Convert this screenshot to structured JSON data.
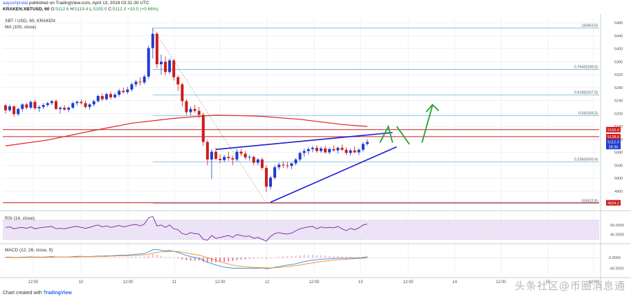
{
  "header": {
    "author": "aayushjindal",
    "published_text": "published on TradingView.com, April 13, 2019 03:31:30 UTC",
    "symbol_line": "KRAKEN:XBTUSD, 60",
    "ohlc_o": "5112.6",
    "ohlc_h": "5119.4",
    "ohlc_l": "5105.0",
    "ohlc_c": "5112.3",
    "change": "+33.5 (+0.66%)"
  },
  "legend": {
    "title": "XBT / USD, 60, KRAKEN",
    "ma": "MA (100, close)",
    "rsi": "RSI (14, close)",
    "macd": "MACD (12, 26, close, 9)"
  },
  "footer": {
    "prefix": "Chart created with",
    "brand": "TradingView"
  },
  "watermark": "头条社区@币圈消息通",
  "colors": {
    "up": "#1f3bd0",
    "down": "#d01a1a",
    "ma": "#e0201c",
    "trend": "#1a1ad0",
    "fib": "#6fb0d8",
    "arrow": "#1fa52a",
    "rsi": "#7b1fa2",
    "macd": "#2e8de0",
    "signal": "#f08a24"
  },
  "chart_data": {
    "type": "candlestick",
    "x_ticks": [
      "12:00",
      "10",
      "12:00",
      "11",
      "12:00",
      "12",
      "12:00",
      "13",
      "12:00",
      "14",
      "12:00",
      "15",
      "12:00"
    ],
    "y_ticks": [
      4960,
      5000,
      5040,
      5080,
      5120,
      5160,
      5200,
      5240,
      5280,
      5320,
      5360,
      5400,
      5440,
      5480
    ],
    "ylim": [
      4915,
      5495
    ],
    "candles": [
      [
        5225,
        5230,
        5200,
        5210
      ],
      [
        5210,
        5228,
        5205,
        5222
      ],
      [
        5222,
        5226,
        5190,
        5198
      ],
      [
        5198,
        5218,
        5192,
        5214
      ],
      [
        5214,
        5232,
        5206,
        5228
      ],
      [
        5228,
        5234,
        5212,
        5218
      ],
      [
        5218,
        5240,
        5214,
        5236
      ],
      [
        5236,
        5242,
        5212,
        5216
      ],
      [
        5216,
        5225,
        5205,
        5220
      ],
      [
        5220,
        5232,
        5214,
        5226
      ],
      [
        5226,
        5236,
        5220,
        5232
      ],
      [
        5232,
        5242,
        5226,
        5238
      ],
      [
        5238,
        5244,
        5210,
        5214
      ],
      [
        5214,
        5222,
        5200,
        5218
      ],
      [
        5218,
        5226,
        5208,
        5212
      ],
      [
        5212,
        5222,
        5204,
        5218
      ],
      [
        5218,
        5236,
        5214,
        5232
      ],
      [
        5232,
        5240,
        5224,
        5236
      ],
      [
        5236,
        5244,
        5228,
        5232
      ],
      [
        5232,
        5240,
        5216,
        5220
      ],
      [
        5220,
        5232,
        5212,
        5228
      ],
      [
        5228,
        5242,
        5222,
        5238
      ],
      [
        5238,
        5258,
        5234,
        5254
      ],
      [
        5254,
        5262,
        5238,
        5244
      ],
      [
        5244,
        5264,
        5240,
        5260
      ],
      [
        5260,
        5268,
        5244,
        5250
      ],
      [
        5250,
        5264,
        5246,
        5258
      ],
      [
        5258,
        5276,
        5252,
        5270
      ],
      [
        5270,
        5280,
        5262,
        5266
      ],
      [
        5266,
        5282,
        5260,
        5274
      ],
      [
        5274,
        5296,
        5268,
        5290
      ],
      [
        5290,
        5304,
        5282,
        5298
      ],
      [
        5298,
        5312,
        5286,
        5296
      ],
      [
        5296,
        5320,
        5290,
        5314
      ],
      [
        5314,
        5410,
        5306,
        5402
      ],
      [
        5402,
        5464,
        5370,
        5446
      ],
      [
        5446,
        5452,
        5340,
        5352
      ],
      [
        5352,
        5382,
        5320,
        5360
      ],
      [
        5360,
        5376,
        5318,
        5328
      ],
      [
        5328,
        5370,
        5322,
        5364
      ],
      [
        5364,
        5368,
        5302,
        5312
      ],
      [
        5312,
        5318,
        5270,
        5290
      ],
      [
        5290,
        5296,
        5222,
        5238
      ],
      [
        5238,
        5244,
        5196,
        5204
      ],
      [
        5204,
        5222,
        5194,
        5214
      ],
      [
        5214,
        5226,
        5202,
        5208
      ],
      [
        5208,
        5220,
        5186,
        5196
      ],
      [
        5196,
        5202,
        5100,
        5112
      ],
      [
        5112,
        5118,
        5040,
        5058
      ],
      [
        5058,
        5090,
        4998,
        5082
      ],
      [
        5082,
        5094,
        5056,
        5060
      ],
      [
        5060,
        5074,
        5046,
        5056
      ],
      [
        5056,
        5072,
        5050,
        5066
      ],
      [
        5066,
        5082,
        5054,
        5062
      ],
      [
        5062,
        5070,
        5040,
        5058
      ],
      [
        5058,
        5090,
        5052,
        5082
      ],
      [
        5082,
        5090,
        5068,
        5076
      ],
      [
        5076,
        5084,
        5058,
        5064
      ],
      [
        5064,
        5072,
        5054,
        5066
      ],
      [
        5066,
        5070,
        5040,
        5048
      ],
      [
        5048,
        5062,
        5040,
        5058
      ],
      [
        5058,
        5064,
        5026,
        5032
      ],
      [
        5032,
        5040,
        4958,
        4974
      ],
      [
        4974,
        5008,
        4966,
        5002
      ],
      [
        5002,
        5040,
        4996,
        5034
      ],
      [
        5034,
        5048,
        5026,
        5042
      ],
      [
        5042,
        5052,
        5032,
        5040
      ],
      [
        5040,
        5050,
        5030,
        5038
      ],
      [
        5038,
        5048,
        5028,
        5046
      ],
      [
        5046,
        5062,
        5040,
        5058
      ],
      [
        5058,
        5082,
        5052,
        5078
      ],
      [
        5078,
        5092,
        5066,
        5084
      ],
      [
        5084,
        5096,
        5074,
        5090
      ],
      [
        5090,
        5100,
        5080,
        5094
      ],
      [
        5094,
        5102,
        5078,
        5084
      ],
      [
        5084,
        5098,
        5078,
        5092
      ],
      [
        5092,
        5100,
        5076,
        5080
      ],
      [
        5080,
        5096,
        5074,
        5090
      ],
      [
        5090,
        5102,
        5082,
        5086
      ],
      [
        5086,
        5098,
        5076,
        5094
      ],
      [
        5094,
        5104,
        5084,
        5088
      ],
      [
        5088,
        5096,
        5072,
        5078
      ],
      [
        5078,
        5092,
        5070,
        5086
      ],
      [
        5086,
        5098,
        5078,
        5080
      ],
      [
        5080,
        5092,
        5072,
        5088
      ],
      [
        5088,
        5112,
        5082,
        5106
      ],
      [
        5106,
        5120,
        5100,
        5112
      ]
    ],
    "ma100": [
      [
        0,
        5100
      ],
      [
        10,
        5118
      ],
      [
        20,
        5145
      ],
      [
        30,
        5170
      ],
      [
        40,
        5185
      ],
      [
        50,
        5195
      ],
      [
        60,
        5192
      ],
      [
        70,
        5182
      ],
      [
        80,
        5166
      ],
      [
        86,
        5160
      ]
    ],
    "fib_levels": [
      {
        "label": "1(5463.6)",
        "value": 5463.6
      },
      {
        "label": "0.764(5336.0)",
        "value": 5336.0
      },
      {
        "label": "0.618(5257.0)",
        "value": 5257.0
      },
      {
        "label": "0.5(5193.2)",
        "value": 5193.2
      },
      {
        "label": "0.236(5050.4)",
        "value": 5050.4
      },
      {
        "label": "0(4922.8)",
        "value": 4922.8
      }
    ],
    "horizontal_lines": [
      5150.0,
      5128.6,
      4924.2
    ],
    "price_tags": [
      {
        "label": "5150.0",
        "value": 5150.0,
        "color": "#d01a1a"
      },
      {
        "label": "5128.6",
        "value": 5128.6,
        "color": "#d01a1a"
      },
      {
        "label": "5112.3",
        "value": 5112.3,
        "color": "#1f3bd0"
      },
      {
        "label": "28:36",
        "value": 5098,
        "color": "#1f3bd0"
      },
      {
        "label": "4924.2",
        "value": 4924.2,
        "color": "#d01a1a"
      }
    ],
    "rsi": {
      "ylim": [
        25,
        80
      ],
      "ticks": [
        40.0,
        60.0
      ],
      "band": [
        30,
        70
      ],
      "values": [
        55,
        56,
        52,
        54,
        55,
        53,
        56,
        52,
        54,
        55,
        56,
        57,
        52,
        53,
        52,
        54,
        56,
        57,
        55,
        53,
        55,
        58,
        60,
        56,
        58,
        55,
        57,
        59,
        56,
        58,
        60,
        61,
        58,
        62,
        75,
        78,
        58,
        60,
        55,
        60,
        52,
        50,
        42,
        40,
        44,
        42,
        41,
        30,
        28,
        38,
        32,
        34,
        36,
        38,
        34,
        40,
        38,
        36,
        37,
        32,
        34,
        30,
        26,
        36,
        42,
        44,
        42,
        41,
        43,
        48,
        52,
        54,
        56,
        57,
        52,
        56,
        54,
        55,
        54,
        57,
        52,
        48,
        53,
        50,
        54,
        60,
        62
      ]
    },
    "macd": {
      "ylim": [
        -60,
        45
      ],
      "ticks": [
        "0.0000",
        "-40.0000"
      ],
      "tick_values": [
        0,
        -40
      ],
      "macd": [
        2,
        2,
        1,
        1,
        2,
        2,
        3,
        2,
        2,
        2,
        3,
        4,
        3,
        3,
        3,
        3,
        4,
        5,
        5,
        4,
        4,
        5,
        6,
        6,
        7,
        7,
        8,
        9,
        9,
        10,
        11,
        13,
        14,
        16,
        22,
        30,
        31,
        28,
        26,
        27,
        24,
        20,
        14,
        8,
        4,
        1,
        -2,
        -10,
        -18,
        -22,
        -28,
        -32,
        -36,
        -38,
        -40,
        -40,
        -40,
        -41,
        -40,
        -40,
        -40,
        -39,
        -42,
        -40,
        -37,
        -34,
        -31,
        -28,
        -26,
        -23,
        -19,
        -15,
        -12,
        -9,
        -8,
        -6,
        -5,
        -4,
        -3,
        -2,
        -2,
        -2,
        -1,
        -2,
        -1,
        1,
        3
      ],
      "signal": [
        1,
        1,
        1,
        1,
        1,
        1,
        2,
        2,
        2,
        2,
        2,
        2,
        3,
        3,
        3,
        3,
        3,
        3,
        4,
        4,
        4,
        4,
        5,
        5,
        5,
        6,
        6,
        7,
        7,
        8,
        8,
        9,
        10,
        11,
        13,
        17,
        20,
        22,
        23,
        24,
        24,
        23,
        21,
        18,
        15,
        12,
        9,
        5,
        0,
        -5,
        -10,
        -15,
        -20,
        -24,
        -28,
        -31,
        -33,
        -35,
        -36,
        -37,
        -38,
        -38,
        -39,
        -39,
        -38,
        -37,
        -36,
        -34,
        -32,
        -30,
        -28,
        -25,
        -22,
        -20,
        -17,
        -15,
        -13,
        -11,
        -9,
        -8,
        -7,
        -6,
        -5,
        -4,
        -3,
        -2,
        -1
      ]
    }
  }
}
